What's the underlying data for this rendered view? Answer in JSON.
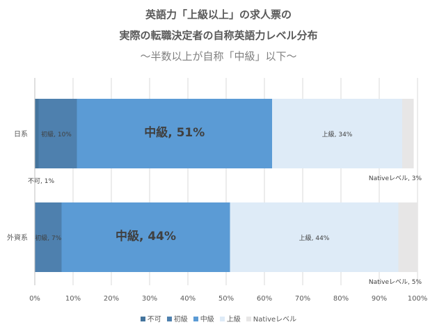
{
  "title": {
    "line1": "英語力「上級以上」の求人票の",
    "line2": "実際の転職決定者の自称英語力レベル分布",
    "subtitle": "〜半数以上が自称「中級」以下〜"
  },
  "chart_data": {
    "type": "bar",
    "orientation": "horizontal",
    "stacked": true,
    "normalized": true,
    "categories": [
      "日系",
      "外資系"
    ],
    "series": [
      {
        "name": "不可",
        "color": "#44749d",
        "values": [
          1,
          0
        ]
      },
      {
        "name": "初級",
        "color": "#4e80ae",
        "values": [
          10,
          7
        ]
      },
      {
        "name": "中級",
        "color": "#5b9bd5",
        "values": [
          51,
          44
        ]
      },
      {
        "name": "上級",
        "color": "#deebf7",
        "values": [
          34,
          44
        ]
      },
      {
        "name": "Nativeレベル",
        "color": "#e7e6e6",
        "values": [
          3,
          5
        ]
      }
    ],
    "data_labels": [
      {
        "category": "日系",
        "series": "不可",
        "text": "不可, 1%"
      },
      {
        "category": "日系",
        "series": "初級",
        "text": "初級, 10%"
      },
      {
        "category": "日系",
        "series": "中級",
        "text": "中級, 51%"
      },
      {
        "category": "日系",
        "series": "上級",
        "text": "上級, 34%"
      },
      {
        "category": "日系",
        "series": "Nativeレベル",
        "text": "Nativeレベル, 3%"
      },
      {
        "category": "外資系",
        "series": "初級",
        "text": "初級, 7%"
      },
      {
        "category": "外資系",
        "series": "中級",
        "text": "中級, 44%"
      },
      {
        "category": "外資系",
        "series": "上級",
        "text": "上級, 44%"
      },
      {
        "category": "外資系",
        "series": "Nativeレベル",
        "text": "Nativeレベル, 5%"
      }
    ],
    "xaxis": {
      "min": 0,
      "max": 100,
      "step": 10,
      "unit": "%"
    },
    "grid": true,
    "legend_position": "bottom"
  }
}
